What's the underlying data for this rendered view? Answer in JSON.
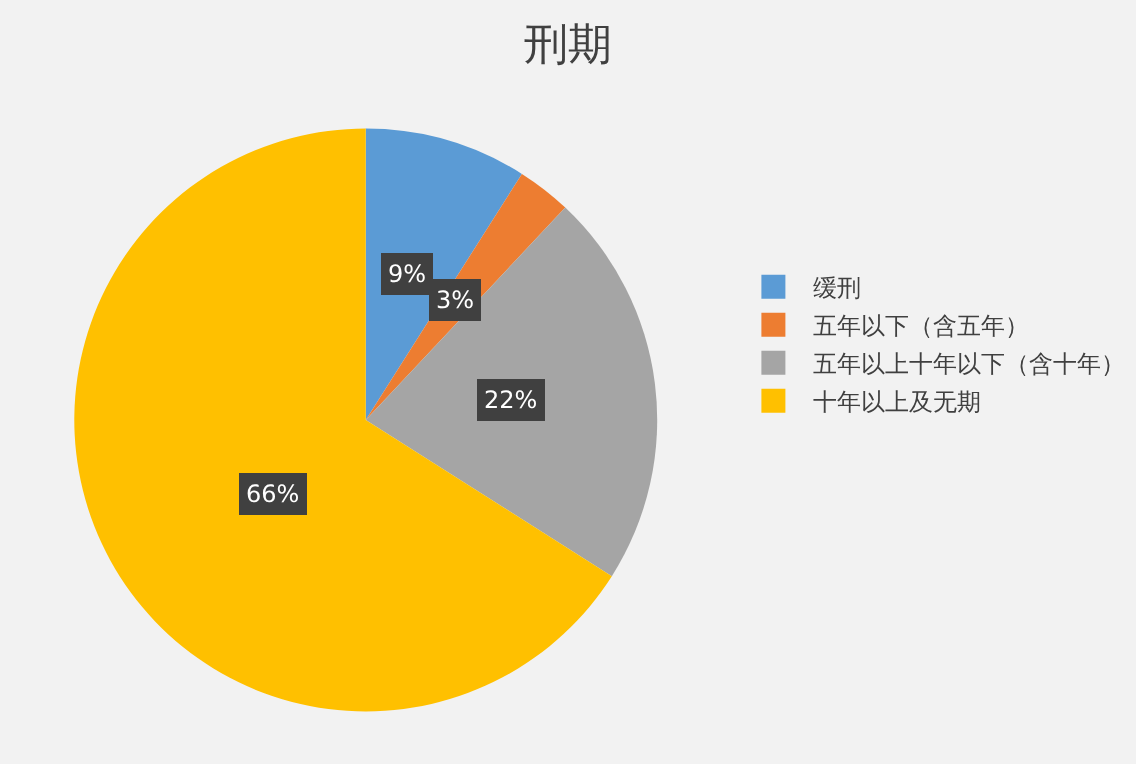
{
  "chart_data": {
    "type": "pie",
    "title": "刑期",
    "categories": [
      "缓刑",
      "五年以下（含五年）",
      "五年以上十年以下（含十年）",
      "十年以上及无期"
    ],
    "values": [
      9,
      3,
      22,
      66
    ],
    "colors": [
      "#5b9bd5",
      "#ed7d31",
      "#a5a5a5",
      "#ffc000"
    ],
    "value_labels": [
      "9%",
      "3%",
      "22%",
      "66%"
    ],
    "legend": "right"
  }
}
